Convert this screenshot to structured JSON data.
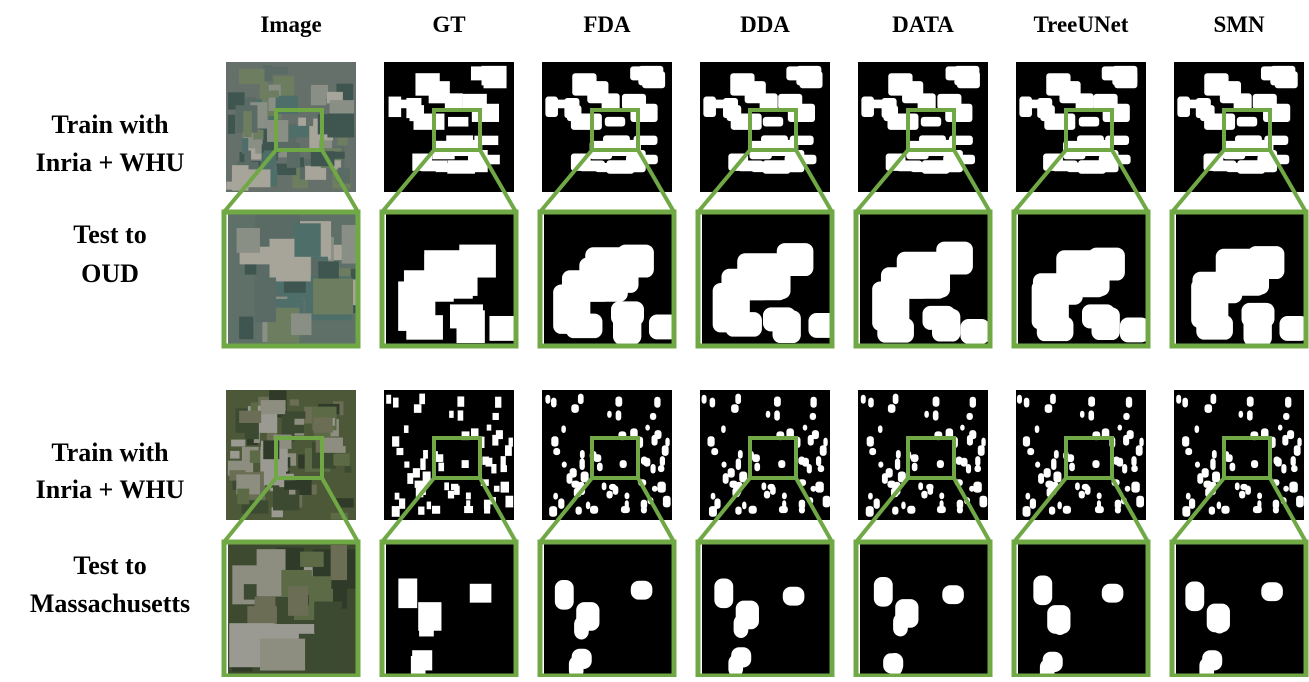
{
  "header": {
    "columns": [
      "Image",
      "GT",
      "FDA",
      "DDA",
      "DATA",
      "TreeUNet",
      "SMN"
    ]
  },
  "groups": [
    {
      "train_label": [
        "Train with",
        "Inria + WHU"
      ],
      "test_label": [
        "Test to",
        "OUD"
      ]
    },
    {
      "train_label": [
        "Train with",
        "Inria + WHU"
      ],
      "test_label": [
        "Test to",
        "Massachusetts"
      ]
    }
  ]
}
